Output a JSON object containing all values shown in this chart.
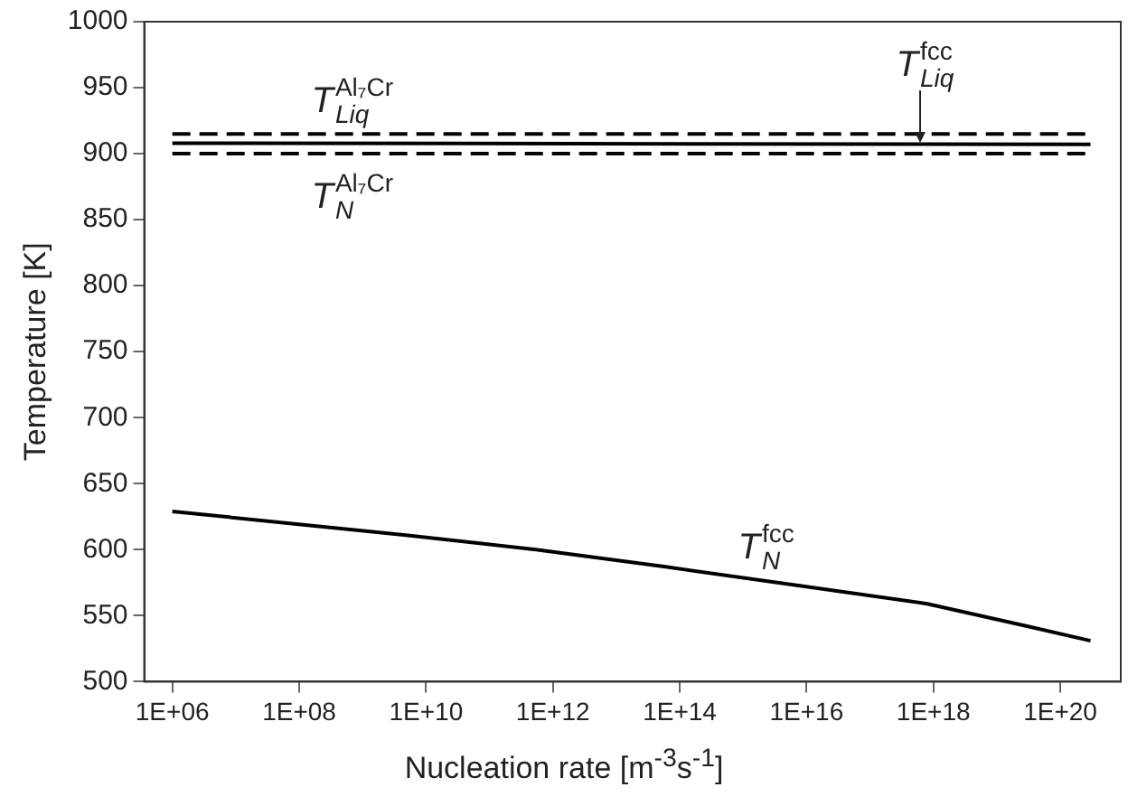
{
  "chart_data": {
    "type": "line",
    "xlabel": "Nucleation rate [m$^{-3}$s$^{-1}$]",
    "ylabel": "Temperature [K]",
    "log": "x",
    "xlim": [
      360000,
      900000000000000000000
    ],
    "ylim": [
      500,
      1000
    ],
    "xticks": [
      {
        "value": 1000000.0,
        "label": "1E+06"
      },
      {
        "value": 100000000.0,
        "label": "1E+08"
      },
      {
        "value": 10000000000.0,
        "label": "1E+10"
      },
      {
        "value": 1000000000000.0,
        "label": "1E+12"
      },
      {
        "value": 100000000000000.0,
        "label": "1E+14"
      },
      {
        "value": 1e+16,
        "label": "1E+16"
      },
      {
        "value": 1e+18,
        "label": "1E+18"
      },
      {
        "value": 1e+20,
        "label": "1E+20"
      }
    ],
    "yticks": [
      500,
      550,
      600,
      650,
      700,
      750,
      800,
      850,
      900,
      950,
      1000
    ],
    "grid": false,
    "legend": false,
    "marker": "none",
    "series": [
      {
        "color": "#000000",
        "line_style": "dashed",
        "x": [
          1000000.0,
          3e+20
        ],
        "values": [
          915,
          915
        ]
      },
      {
        "color": "#000000",
        "line_style": "solid",
        "x": [
          1000000.0,
          3e+20
        ],
        "values": [
          908,
          907
        ]
      },
      {
        "color": "#000000",
        "line_style": "dashed",
        "x": [
          1000000.0,
          3e+20
        ],
        "values": [
          900,
          900
        ]
      },
      {
        "color": "#000000",
        "line_style": "solid",
        "x": [
          1000000.0,
          4800000000.0,
          540000000000.0,
          60000000000000.0,
          7000000000000000.0,
          8e+17,
          3e+19,
          3e+20
        ],
        "values": [
          629,
          611,
          600,
          587,
          573,
          559,
          542,
          531
        ]
      }
    ],
    "annotations": [
      {
        "text": "T$_{Liq}$$^{Al₇Cr}$",
        "x": 300000000.0,
        "y": 915
      },
      {
        "text": "T$_{N}$$^{Al₇Cr}$",
        "x": 300000000.0,
        "y": 900
      },
      {
        "text": "T$_{Liq}$$^{fcc}$",
        "x": 5e+17,
        "y": 907
      },
      {
        "text": "T$_{N}$$^{fcc}$",
        "x": 1600000000000000.0,
        "y": 577
      }
    ]
  }
}
